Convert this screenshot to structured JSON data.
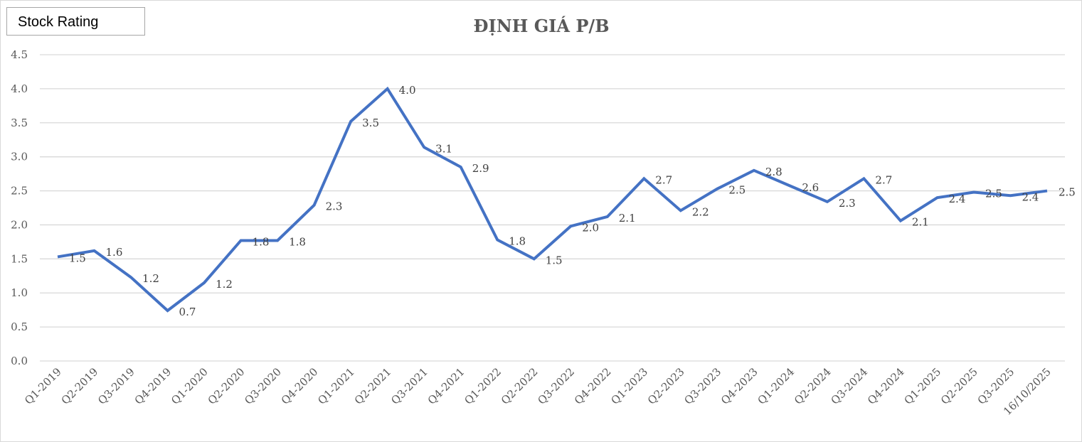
{
  "badge": {
    "label": "Stock Rating"
  },
  "chart_data": {
    "type": "line",
    "title": "ĐỊNH GIÁ P/B",
    "xlabel": "",
    "ylabel": "",
    "ylim": [
      0,
      4.5
    ],
    "yticks": [
      "0.0",
      "0.5",
      "1.0",
      "1.5",
      "2.0",
      "2.5",
      "3.0",
      "3.5",
      "4.0",
      "4.5"
    ],
    "grid": true,
    "legend": "none",
    "categories": [
      "Q1-2019",
      "Q2-2019",
      "Q3-2019",
      "Q4-2019",
      "Q1-2020",
      "Q2-2020",
      "Q3-2020",
      "Q4-2020",
      "Q1-2021",
      "Q2-2021",
      "Q3-2021",
      "Q4-2021",
      "Q1-2022",
      "Q2-2022",
      "Q3-2022",
      "Q4-2022",
      "Q1-2023",
      "Q2-2023",
      "Q3-2023",
      "Q4-2023",
      "Q1-2024",
      "Q2-2024",
      "Q3-2024",
      "Q4-2024",
      "Q1-2025",
      "Q2-2025",
      "Q3-2025",
      "16/10/2025"
    ],
    "series": [
      {
        "name": "P/B",
        "color": "#4472c4",
        "values": [
          1.53,
          1.62,
          1.23,
          0.74,
          1.15,
          1.77,
          1.77,
          2.29,
          3.52,
          4.0,
          3.14,
          2.85,
          1.78,
          1.5,
          1.98,
          2.12,
          2.68,
          2.21,
          2.53,
          2.8,
          2.57,
          2.34,
          2.68,
          2.06,
          2.4,
          2.48,
          2.43,
          2.5
        ],
        "labels": [
          "1.5",
          "1.6",
          "1.2",
          "0.7",
          "1.2",
          "1.8",
          "1.8",
          "2.3",
          "3.5",
          "4.0",
          "3.1",
          "2.9",
          "1.8",
          "1.5",
          "2.0",
          "2.1",
          "2.7",
          "2.2",
          "2.5",
          "2.8",
          "2.6",
          "2.3",
          "2.7",
          "2.1",
          "2.4",
          "2.5",
          "2.4",
          "2.5"
        ]
      }
    ]
  }
}
